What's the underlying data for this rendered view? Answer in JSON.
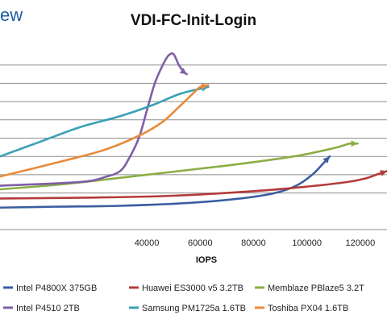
{
  "logo": {
    "text": "ew"
  },
  "chart_data": {
    "type": "line",
    "title": "VDI-FC-Init-Login",
    "xlabel": "IOPS",
    "ylabel": "",
    "xlim": [
      -15000,
      130000
    ],
    "ylim": [
      0,
      10
    ],
    "grid": {
      "horizontal": true,
      "vertical": false
    },
    "legend_position": "bottom",
    "x_ticks": [
      {
        "value": 40000,
        "label": "40000"
      },
      {
        "value": 60000,
        "label": "60000"
      },
      {
        "value": 80000,
        "label": "80000"
      },
      {
        "value": 100000,
        "label": "100000"
      },
      {
        "value": 120000,
        "label": "120000"
      }
    ],
    "y_grid": [
      2,
      3,
      4,
      5,
      6,
      7,
      8,
      9
    ],
    "series": [
      {
        "name": "Intel P4800X 375GB",
        "color": "#3b5ea0",
        "points": [
          [
            -15000,
            1.2
          ],
          [
            5000,
            1.25
          ],
          [
            30000,
            1.3
          ],
          [
            55000,
            1.45
          ],
          [
            75000,
            1.7
          ],
          [
            88000,
            2.0
          ],
          [
            96000,
            2.4
          ],
          [
            102000,
            3.0
          ],
          [
            106000,
            3.6
          ],
          [
            108500,
            4.0
          ]
        ]
      },
      {
        "name": "Huawei ES3000 v5 3.2TB",
        "color": "#b43b3a",
        "points": [
          [
            -15000,
            1.7
          ],
          [
            20000,
            1.75
          ],
          [
            50000,
            1.85
          ],
          [
            80000,
            2.1
          ],
          [
            100000,
            2.35
          ],
          [
            115000,
            2.6
          ],
          [
            122000,
            2.8
          ],
          [
            126000,
            3.0
          ],
          [
            130000,
            3.2
          ]
        ]
      },
      {
        "name": "Memblaze PBlaze5 3.2T",
        "color": "#8aaf45",
        "points": [
          [
            -15000,
            2.2
          ],
          [
            10000,
            2.5
          ],
          [
            40000,
            3.0
          ],
          [
            70000,
            3.5
          ],
          [
            95000,
            4.0
          ],
          [
            110000,
            4.45
          ],
          [
            116000,
            4.7
          ],
          [
            119000,
            4.7
          ]
        ]
      },
      {
        "name": "Intel P4510 2TB",
        "color": "#7f5fa6",
        "points": [
          [
            -15000,
            2.4
          ],
          [
            15000,
            2.6
          ],
          [
            25000,
            2.9
          ],
          [
            30000,
            3.2
          ],
          [
            33000,
            3.8
          ],
          [
            37000,
            5.0
          ],
          [
            40000,
            6.5
          ],
          [
            43000,
            8.0
          ],
          [
            46000,
            9.0
          ],
          [
            48000,
            9.5
          ],
          [
            50000,
            9.6
          ],
          [
            52000,
            9.0
          ],
          [
            54000,
            8.6
          ],
          [
            55000,
            8.5
          ]
        ]
      },
      {
        "name": "Samsung PM1725a 1.6TB",
        "color": "#3aa0b5",
        "points": [
          [
            -15000,
            4.0
          ],
          [
            0,
            4.8
          ],
          [
            15000,
            5.6
          ],
          [
            30000,
            6.2
          ],
          [
            42000,
            6.8
          ],
          [
            52000,
            7.4
          ],
          [
            60000,
            7.7
          ],
          [
            63000,
            7.8
          ]
        ]
      },
      {
        "name": "Toshiba PX04 1.6TB",
        "color": "#e8893a",
        "points": [
          [
            -15000,
            2.9
          ],
          [
            10000,
            3.8
          ],
          [
            25000,
            4.4
          ],
          [
            38000,
            5.2
          ],
          [
            46000,
            5.9
          ],
          [
            52000,
            6.7
          ],
          [
            57000,
            7.4
          ],
          [
            60000,
            7.8
          ],
          [
            63000,
            7.9
          ]
        ]
      }
    ]
  }
}
